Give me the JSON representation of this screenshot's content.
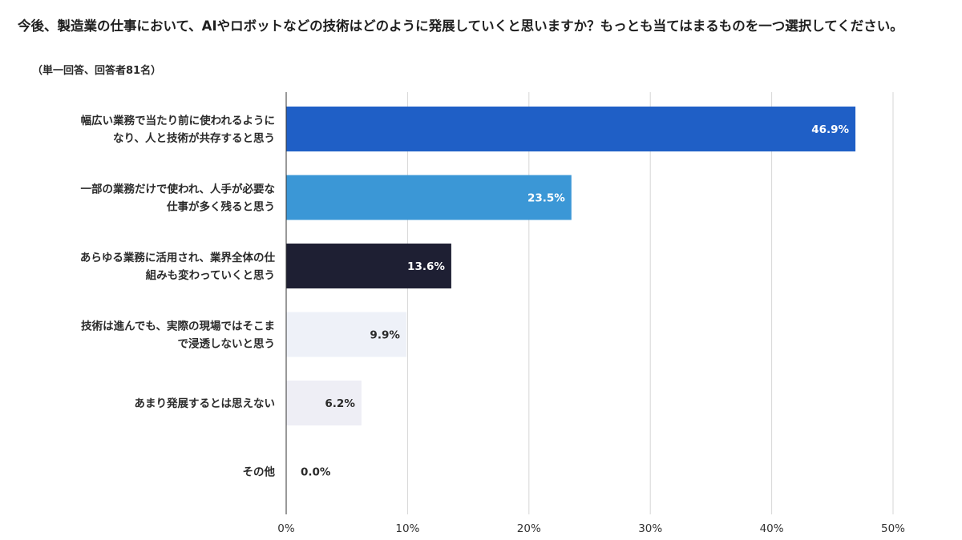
{
  "title": "今後、製造業の仕事において、AIやロボットなどの技術はどのように発展していくと思いますか？もっとも当てはまるものを一つ選択してください。",
  "subtitle": "（単一回答、回答者81名）",
  "chart_data": {
    "type": "bar",
    "orientation": "horizontal",
    "title": "今後、製造業の仕事において、AIやロボットなどの技術はどのように発展していくと思いますか？もっとも当てはまるものを一つ選択してください。",
    "subtitle": "（単一回答、回答者81名）",
    "categories": [
      [
        "幅広い業務で当たり前に使われるように",
        "なり、人と技術が共存すると思う"
      ],
      [
        "一部の業務だけで使われ、人手が必要な",
        "仕事が多く残ると思う"
      ],
      [
        "あらゆる業務に活用され、業界全体の仕",
        "組みも変わっていくと思う"
      ],
      [
        "技術は進んでも、実際の現場ではそこま",
        "で浸透しないと思う"
      ],
      [
        "あまり発展するとは思えない"
      ],
      [
        "その他"
      ]
    ],
    "values": [
      46.9,
      23.5,
      13.6,
      9.9,
      6.2,
      0.0
    ],
    "value_labels": [
      "46.9%",
      "23.5%",
      "13.6%",
      "9.9%",
      "6.2%",
      "0.0%"
    ],
    "bar_colors": [
      "#1f5fc6",
      "#3b97d6",
      "#1e1f33",
      "#eef1f8",
      "#eeeef5",
      "#f2f2f2"
    ],
    "value_label_colors": [
      "#ffffff",
      "#ffffff",
      "#ffffff",
      "#2a2a2a",
      "#2a2a2a",
      "#2a2a2a"
    ],
    "xlim": [
      0,
      50
    ],
    "xticks": [
      0,
      10,
      20,
      30,
      40,
      50
    ],
    "xtick_labels": [
      "0%",
      "10%",
      "20%",
      "30%",
      "40%",
      "50%"
    ],
    "grid": true,
    "legend": "none"
  }
}
